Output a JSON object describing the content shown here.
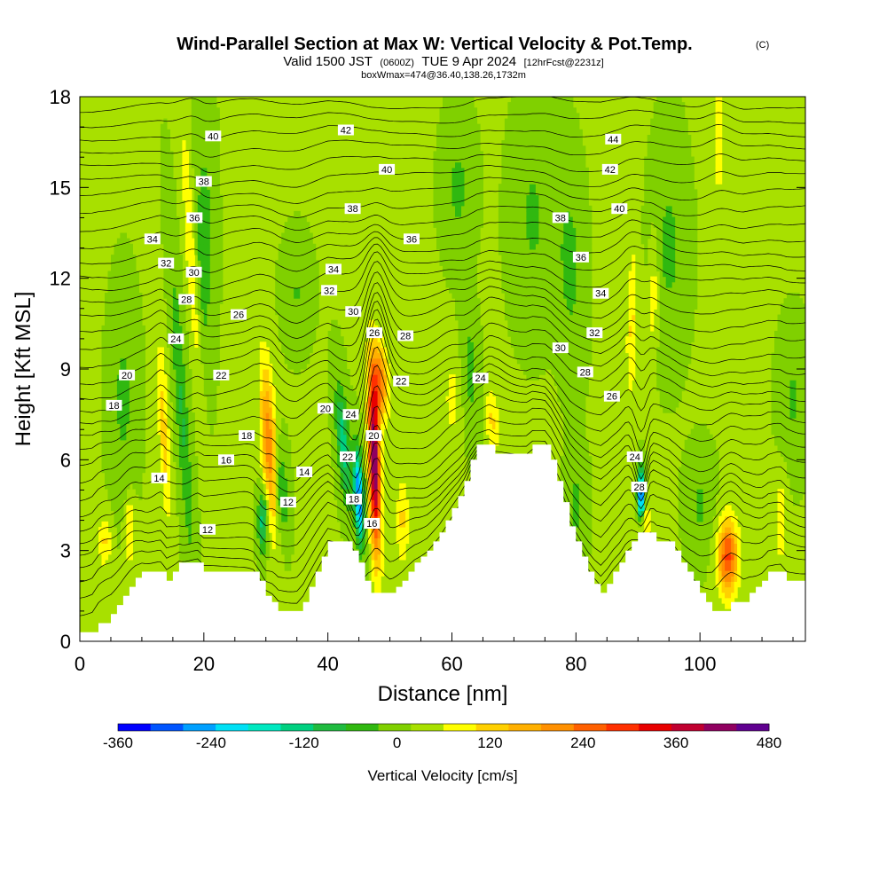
{
  "header": {
    "title": "Wind-Parallel Section at Max W: Vertical Velocity & Pot.Temp.",
    "copyright": "(C)",
    "valid_prefix": "Valid 1500 JST",
    "valid_utc": "(0600Z)",
    "valid_date": "TUE 9 Apr 2024",
    "forecast": "[12hrFcst@2231z]",
    "box_info": "boxWmax=474@36.40,138.26,1732m"
  },
  "chart_data": {
    "type": "heatmap",
    "title": "Wind-Parallel Section at Max W: Vertical Velocity & Pot.Temp.",
    "xlabel": "Distance [nm]",
    "ylabel": "Height [Kft MSL]",
    "xlim": [
      0,
      117
    ],
    "ylim": [
      0,
      18
    ],
    "xticks": [
      "0",
      "20",
      "40",
      "60",
      "80",
      "100"
    ],
    "yticks": [
      "0",
      "3",
      "6",
      "9",
      "12",
      "15",
      "18"
    ],
    "background_value": 20,
    "colorbar": {
      "label": "Vertical Velocity [cm/s]",
      "min": -360,
      "max": 480,
      "ticks": [
        "-360",
        "-240",
        "-120",
        "0",
        "120",
        "240",
        "360",
        "480"
      ],
      "colors": [
        "#0000ff",
        "#0055ff",
        "#00a0ff",
        "#00e0f5",
        "#00e8c0",
        "#00d080",
        "#20bb40",
        "#30b810",
        "#80d000",
        "#a8e000",
        "#ffff00",
        "#ffd000",
        "#ffb000",
        "#ff9000",
        "#ff6000",
        "#ff3000",
        "#e80000",
        "#c00030",
        "#900060",
        "#600090"
      ]
    },
    "terrain": [
      [
        0,
        0.3
      ],
      [
        2,
        0.3
      ],
      [
        3,
        0.6
      ],
      [
        5,
        0.9
      ],
      [
        6,
        1.2
      ],
      [
        7,
        1.5
      ],
      [
        8,
        1.8
      ],
      [
        9,
        2.1
      ],
      [
        10,
        2.3
      ],
      [
        13,
        2.3
      ],
      [
        14,
        2.0
      ],
      [
        15,
        2.3
      ],
      [
        16,
        2.6
      ],
      [
        19,
        2.6
      ],
      [
        20,
        2.3
      ],
      [
        28,
        2.3
      ],
      [
        29,
        2.0
      ],
      [
        30,
        1.5
      ],
      [
        31,
        1.3
      ],
      [
        32,
        1.0
      ],
      [
        35,
        1.0
      ],
      [
        36,
        1.3
      ],
      [
        37,
        1.8
      ],
      [
        38,
        2.3
      ],
      [
        39,
        2.8
      ],
      [
        40,
        3.3
      ],
      [
        43,
        3.3
      ],
      [
        44,
        3.0
      ],
      [
        45,
        2.6
      ],
      [
        46,
        2.0
      ],
      [
        47,
        1.6
      ],
      [
        50,
        1.6
      ],
      [
        51,
        1.8
      ],
      [
        52,
        2.0
      ],
      [
        53,
        2.3
      ],
      [
        54,
        2.6
      ],
      [
        55,
        2.8
      ],
      [
        56,
        3.0
      ],
      [
        57,
        3.3
      ],
      [
        58,
        3.6
      ],
      [
        59,
        4.0
      ],
      [
        60,
        4.4
      ],
      [
        61,
        4.8
      ],
      [
        62,
        5.3
      ],
      [
        63,
        6.0
      ],
      [
        64,
        6.5
      ],
      [
        66,
        6.5
      ],
      [
        67,
        6.2
      ],
      [
        72,
        6.2
      ],
      [
        73,
        6.5
      ],
      [
        75,
        6.5
      ],
      [
        76,
        6.0
      ],
      [
        77,
        5.3
      ],
      [
        78,
        4.6
      ],
      [
        79,
        3.8
      ],
      [
        80,
        3.3
      ],
      [
        81,
        2.8
      ],
      [
        82,
        2.3
      ],
      [
        83,
        1.9
      ],
      [
        84,
        1.6
      ],
      [
        85,
        1.9
      ],
      [
        86,
        2.3
      ],
      [
        87,
        2.6
      ],
      [
        88,
        3.0
      ],
      [
        89,
        3.3
      ],
      [
        90,
        3.6
      ],
      [
        92,
        3.6
      ],
      [
        93,
        3.3
      ],
      [
        95,
        3.3
      ],
      [
        96,
        3.0
      ],
      [
        97,
        2.6
      ],
      [
        98,
        2.3
      ],
      [
        99,
        2.0
      ],
      [
        100,
        1.6
      ],
      [
        101,
        1.3
      ],
      [
        102,
        1.0
      ],
      [
        103,
        1.0
      ],
      [
        105,
        1.3
      ],
      [
        107,
        1.3
      ],
      [
        108,
        1.6
      ],
      [
        109,
        1.8
      ],
      [
        110,
        2.0
      ],
      [
        111,
        2.3
      ],
      [
        113,
        2.3
      ],
      [
        114,
        2.0
      ],
      [
        117,
        2.0
      ]
    ],
    "updrafts": [
      {
        "x": 47.5,
        "y": 6.0,
        "value": 430,
        "xw": 0.9,
        "yh": 3.0,
        "tilt": -0.12
      },
      {
        "x": 48.5,
        "y": 8.6,
        "value": 200,
        "xw": 1.2,
        "yh": 1.2,
        "tilt": -0.2
      },
      {
        "x": 30.5,
        "y": 6.5,
        "value": 190,
        "xw": 1.2,
        "yh": 2.8,
        "tilt": -0.25
      },
      {
        "x": 18.0,
        "y": 12.5,
        "value": 80,
        "xw": 0.9,
        "yh": 5.0,
        "tilt": -0.3
      },
      {
        "x": 13.5,
        "y": 7.0,
        "value": 100,
        "xw": 0.8,
        "yh": 3.0,
        "tilt": -0.2
      },
      {
        "x": 66.5,
        "y": 7.3,
        "value": 90,
        "xw": 1.0,
        "yh": 1.1,
        "tilt": -0.2
      },
      {
        "x": 89.0,
        "y": 10.5,
        "value": 90,
        "xw": 0.8,
        "yh": 2.5,
        "tilt": 0.1
      },
      {
        "x": 104.5,
        "y": 2.8,
        "value": 260,
        "xw": 1.6,
        "yh": 1.2,
        "tilt": 0
      },
      {
        "x": 91.0,
        "y": 4.0,
        "value": 90,
        "xw": 1.0,
        "yh": 0.7,
        "tilt": 0
      },
      {
        "x": 4.0,
        "y": 3.3,
        "value": 90,
        "xw": 1.0,
        "yh": 0.8,
        "tilt": 0
      },
      {
        "x": 8.0,
        "y": 3.6,
        "value": 90,
        "xw": 0.8,
        "yh": 1.2,
        "tilt": 0
      },
      {
        "x": 113.0,
        "y": 4.0,
        "value": 70,
        "xw": 1.0,
        "yh": 1.5,
        "tilt": 0
      },
      {
        "x": 60.0,
        "y": 8.0,
        "value": 60,
        "xw": 1.2,
        "yh": 1.3,
        "tilt": 0
      },
      {
        "x": 92.5,
        "y": 11.5,
        "value": 70,
        "xw": 0.8,
        "yh": 2.0,
        "tilt": 0.1
      },
      {
        "x": 103.0,
        "y": 16.5,
        "value": 70,
        "xw": 1.0,
        "yh": 2.0,
        "tilt": 0
      },
      {
        "x": 52.0,
        "y": 4.0,
        "value": 90,
        "xw": 1.0,
        "yh": 1.5,
        "tilt": 0
      }
    ],
    "downdrafts": [
      {
        "x": 45.0,
        "y": 4.8,
        "value": -320,
        "xw": 0.7,
        "yh": 1.5,
        "tilt": -0.2
      },
      {
        "x": 42.5,
        "y": 6.5,
        "value": -150,
        "xw": 1.0,
        "yh": 2.0,
        "tilt": -0.35
      },
      {
        "x": 90.5,
        "y": 4.8,
        "value": -360,
        "xw": 0.55,
        "yh": 0.8,
        "tilt": 0
      },
      {
        "x": 29.5,
        "y": 4.0,
        "value": -160,
        "xw": 0.8,
        "yh": 1.0,
        "tilt": 0
      },
      {
        "x": 32.5,
        "y": 5.0,
        "value": -100,
        "xw": 1.0,
        "yh": 1.5,
        "tilt": -0.2
      },
      {
        "x": 16.5,
        "y": 7.5,
        "value": -90,
        "xw": 1.0,
        "yh": 5.0,
        "tilt": -0.3
      },
      {
        "x": 20.0,
        "y": 13.0,
        "value": -70,
        "xw": 1.5,
        "yh": 4.0,
        "tilt": 0
      },
      {
        "x": 61.0,
        "y": 15.0,
        "value": -55,
        "xw": 2.2,
        "yh": 2.0,
        "tilt": 0
      },
      {
        "x": 79.0,
        "y": 12.5,
        "value": -60,
        "xw": 2.0,
        "yh": 3.0,
        "tilt": -0.1
      },
      {
        "x": 73.0,
        "y": 14.0,
        "value": -50,
        "xw": 3.0,
        "yh": 3.0,
        "tilt": 0
      },
      {
        "x": 7.0,
        "y": 8.0,
        "value": -55,
        "xw": 2.0,
        "yh": 3.0,
        "tilt": 0
      },
      {
        "x": 95.0,
        "y": 13.0,
        "value": -55,
        "xw": 2.5,
        "yh": 3.0,
        "tilt": 0
      },
      {
        "x": 63.0,
        "y": 9.0,
        "value": -60,
        "xw": 1.2,
        "yh": 2.0,
        "tilt": -0.2
      },
      {
        "x": 100.0,
        "y": 4.5,
        "value": -50,
        "xw": 2.0,
        "yh": 1.5,
        "tilt": 0
      },
      {
        "x": 80.0,
        "y": 4.5,
        "value": -55,
        "xw": 1.5,
        "yh": 1.5,
        "tilt": 0
      },
      {
        "x": 115.0,
        "y": 8.0,
        "value": -50,
        "xw": 2.0,
        "yh": 2.0,
        "tilt": 0
      },
      {
        "x": 35.0,
        "y": 11.5,
        "value": -45,
        "xw": 2.0,
        "yh": 1.5,
        "tilt": 0
      }
    ],
    "contour_labels": [
      {
        "x": 21.5,
        "y": 16.7,
        "text": "40"
      },
      {
        "x": 42.9,
        "y": 16.9,
        "text": "42"
      },
      {
        "x": 86.0,
        "y": 16.6,
        "text": "44"
      },
      {
        "x": 49.5,
        "y": 15.6,
        "text": "40"
      },
      {
        "x": 85.5,
        "y": 15.6,
        "text": "42"
      },
      {
        "x": 20.0,
        "y": 15.2,
        "text": "38"
      },
      {
        "x": 44.0,
        "y": 14.3,
        "text": "38"
      },
      {
        "x": 87.0,
        "y": 14.3,
        "text": "40"
      },
      {
        "x": 18.5,
        "y": 14.0,
        "text": "36"
      },
      {
        "x": 77.5,
        "y": 14.0,
        "text": "38"
      },
      {
        "x": 11.7,
        "y": 13.3,
        "text": "34"
      },
      {
        "x": 53.5,
        "y": 13.3,
        "text": "36"
      },
      {
        "x": 80.8,
        "y": 12.7,
        "text": "36"
      },
      {
        "x": 13.9,
        "y": 12.5,
        "text": "32"
      },
      {
        "x": 18.4,
        "y": 12.2,
        "text": "30"
      },
      {
        "x": 40.9,
        "y": 12.3,
        "text": "34"
      },
      {
        "x": 40.2,
        "y": 11.6,
        "text": "32"
      },
      {
        "x": 84.0,
        "y": 11.5,
        "text": "34"
      },
      {
        "x": 17.2,
        "y": 11.3,
        "text": "28"
      },
      {
        "x": 44.1,
        "y": 10.9,
        "text": "30"
      },
      {
        "x": 25.6,
        "y": 10.8,
        "text": "26"
      },
      {
        "x": 47.5,
        "y": 10.2,
        "text": "26"
      },
      {
        "x": 52.5,
        "y": 10.1,
        "text": "28"
      },
      {
        "x": 83.0,
        "y": 10.2,
        "text": "32"
      },
      {
        "x": 15.5,
        "y": 10.0,
        "text": "24"
      },
      {
        "x": 77.5,
        "y": 9.7,
        "text": "30"
      },
      {
        "x": 81.5,
        "y": 8.9,
        "text": "28"
      },
      {
        "x": 7.6,
        "y": 8.8,
        "text": "20"
      },
      {
        "x": 22.8,
        "y": 8.8,
        "text": "22"
      },
      {
        "x": 51.8,
        "y": 8.6,
        "text": "22"
      },
      {
        "x": 64.6,
        "y": 8.7,
        "text": "24"
      },
      {
        "x": 85.8,
        "y": 8.1,
        "text": "26"
      },
      {
        "x": 5.5,
        "y": 7.8,
        "text": "18"
      },
      {
        "x": 39.6,
        "y": 7.7,
        "text": "20"
      },
      {
        "x": 43.7,
        "y": 7.5,
        "text": "24"
      },
      {
        "x": 47.4,
        "y": 6.8,
        "text": "20"
      },
      {
        "x": 26.9,
        "y": 6.8,
        "text": "18"
      },
      {
        "x": 23.6,
        "y": 6.0,
        "text": "16"
      },
      {
        "x": 43.2,
        "y": 6.1,
        "text": "22"
      },
      {
        "x": 89.5,
        "y": 6.1,
        "text": "24"
      },
      {
        "x": 36.2,
        "y": 5.6,
        "text": "14"
      },
      {
        "x": 12.8,
        "y": 5.4,
        "text": "14"
      },
      {
        "x": 90.2,
        "y": 5.1,
        "text": "28"
      },
      {
        "x": 44.2,
        "y": 4.7,
        "text": "18"
      },
      {
        "x": 33.6,
        "y": 4.6,
        "text": "12"
      },
      {
        "x": 47.1,
        "y": 3.9,
        "text": "16"
      },
      {
        "x": 20.6,
        "y": 3.7,
        "text": "12"
      }
    ]
  }
}
